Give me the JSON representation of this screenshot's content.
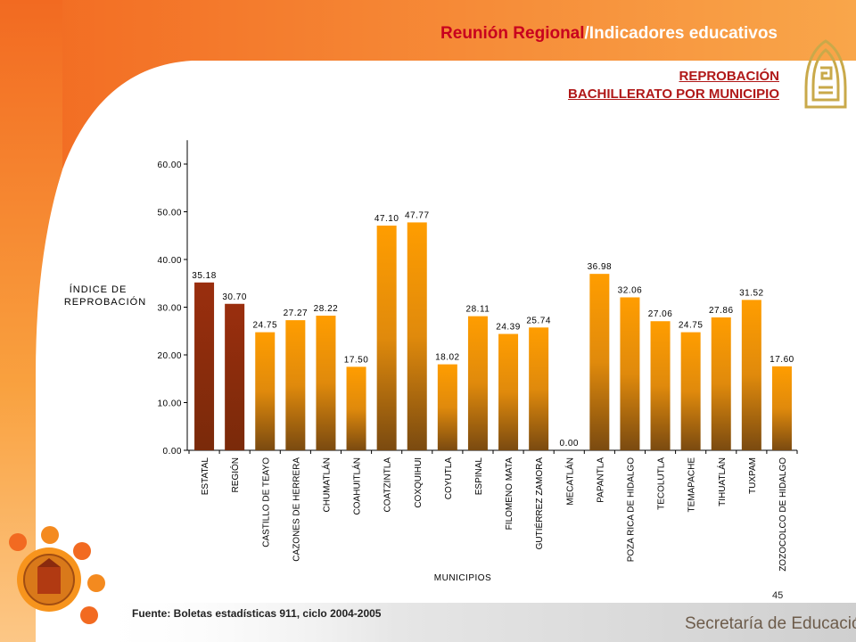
{
  "header": {
    "title_part1": "Reunión Regional",
    "title_part2": "/Indicadores educativos",
    "subtitle_line1": "REPROBACIÓN",
    "subtitle_line2": "BACHILLERATO POR MUNICIPIO"
  },
  "colors": {
    "frame_orange": "#f7941d",
    "title_red": "#c8001e",
    "bar_highlight": "#8b2a0e",
    "bar_top": "#ff9a00",
    "bar_bottom": "#7a4a10"
  },
  "chart_data": {
    "type": "bar",
    "categories": [
      "ESTATAL",
      "REGIÓN",
      "CASTILLO DE TEAYO",
      "CAZONES DE HERRERA",
      "CHUMATLÁN",
      "COAHUITLÁN",
      "COATZINTLA",
      "COXQUIHUI",
      "COYUTLA",
      "ESPINAL",
      "FILOMENO MATA",
      "GUTIÉRREZ ZAMORA",
      "MECATLÁN",
      "PAPANTLA",
      "POZA RICA DE HIDALGO",
      "TECOLUTLA",
      "TEMAPACHE",
      "TIHUATLÁN",
      "TUXPAM",
      "ZOZOCOLCO DE HIDALGO"
    ],
    "values": [
      35.18,
      30.7,
      24.75,
      27.27,
      28.22,
      17.5,
      47.1,
      47.77,
      18.02,
      28.11,
      24.39,
      25.74,
      0.0,
      36.98,
      32.06,
      27.06,
      24.75,
      27.86,
      31.52,
      17.6
    ],
    "value_labels": [
      "35.18",
      "30.70",
      "24.75",
      "27.27",
      "28.22",
      "17.50",
      "47.10",
      "47.77",
      "18.02",
      "28.11",
      "24.39",
      "25.74",
      "0.00",
      "36.98",
      "32.06",
      "27.06",
      "24.75",
      "27.86",
      "31.52",
      "17.60"
    ],
    "highlight_count": 2,
    "ylabel_line1": "ÍNDICE DE",
    "ylabel_line2": "REPROBACIÓN",
    "xlabel": "MUNICIPIOS",
    "ylim": [
      0,
      65
    ],
    "yticks": [
      "0.00",
      "10.00",
      "20.00",
      "30.00",
      "40.00",
      "50.00",
      "60.00"
    ],
    "ytick_values": [
      0,
      10,
      20,
      30,
      40,
      50,
      60
    ],
    "grid": false,
    "legend": "none"
  },
  "footer": {
    "source": "Fuente: Boletas estadísticas  911, ciclo 2004-2005",
    "page_number": "45",
    "brand": "Secretaría de Educación"
  }
}
